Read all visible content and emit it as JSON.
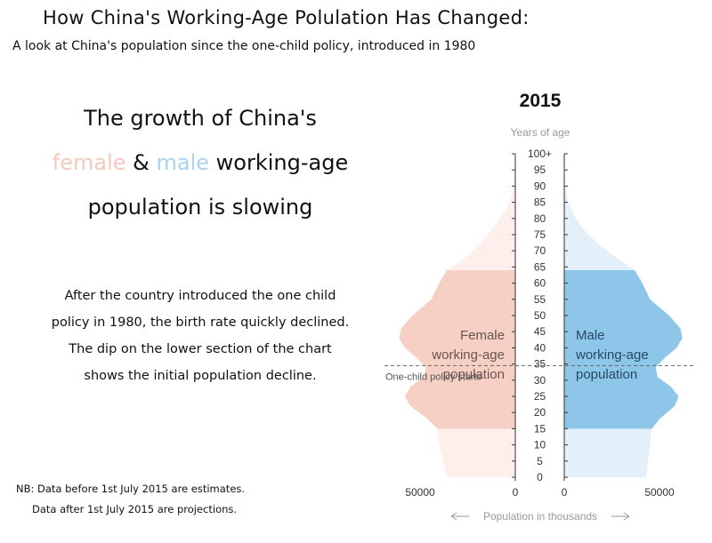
{
  "header": {
    "title": "How China's Working-Age Polulation Has Changed:",
    "subtitle": "A look at China's population since the one-child policy, introduced in 1980"
  },
  "headline": {
    "line1": "The growth of China's",
    "female_word": "female",
    "amp": " & ",
    "male_word": "male",
    "line2_rest": " working-age",
    "line3": "population is slowing"
  },
  "body": {
    "line1": "After the country introduced the one child",
    "line2": "policy in 1980, the birth rate quickly declined.",
    "line3": "The dip on the lower section of the chart",
    "line4": "shows the initial population decline."
  },
  "notes": {
    "line1": "NB: Data before 1st July 2015 are estimates.",
    "line2": "Data after 1st July 2015 are projections."
  },
  "chart_data": {
    "type": "area",
    "title": "2015",
    "y_axis_label": "Years of age",
    "x_axis_label": "Population in thousands",
    "y_ticks": [
      "0",
      "5",
      "10",
      "15",
      "20",
      "25",
      "30",
      "35",
      "40",
      "45",
      "50",
      "55",
      "60",
      "65",
      "70",
      "75",
      "80",
      "85",
      "90",
      "95",
      "100+"
    ],
    "x_ticks_left": [
      "50000",
      "0"
    ],
    "x_ticks_right": [
      "0",
      "50000"
    ],
    "ylim": [
      0,
      100
    ],
    "xlim": [
      0,
      60000
    ],
    "working_age_range": [
      15,
      64
    ],
    "reference_line": {
      "age": 34.5,
      "label": "One-child policy starts"
    },
    "series": [
      {
        "name": "Female",
        "label_lines": [
          "Female",
          "working-age",
          "population"
        ],
        "ages": [
          0,
          5,
          10,
          15,
          18,
          22,
          25,
          28,
          31,
          34,
          37,
          40,
          43,
          46,
          50,
          55,
          60,
          64,
          68,
          72,
          76,
          80,
          85,
          90,
          95,
          100
        ],
        "values": [
          36000,
          38000,
          40000,
          41000,
          46000,
          55000,
          58000,
          55000,
          48000,
          47000,
          52000,
          58000,
          61000,
          60000,
          54000,
          44000,
          40000,
          36000,
          26000,
          19000,
          13000,
          8000,
          3000,
          800,
          150,
          20
        ]
      },
      {
        "name": "Male",
        "label_lines": [
          "Male",
          "working-age",
          "population"
        ],
        "ages": [
          0,
          5,
          10,
          15,
          18,
          22,
          25,
          28,
          31,
          34,
          37,
          40,
          43,
          46,
          50,
          55,
          60,
          64,
          68,
          72,
          76,
          80,
          85,
          90,
          95,
          100
        ],
        "values": [
          43000,
          44000,
          45000,
          46000,
          50000,
          58000,
          60000,
          56000,
          49000,
          48000,
          53000,
          59000,
          62000,
          61000,
          55000,
          45000,
          41000,
          37000,
          27000,
          18000,
          11000,
          6000,
          2000,
          500,
          100,
          10
        ]
      }
    ],
    "colors": {
      "female_light": "#fdefeb",
      "female_dark": "#f7d0c5",
      "male_light": "#e3f0fa",
      "male_dark": "#8ec6ea",
      "axis": "#333333",
      "muted": "#9a9a9a"
    }
  }
}
